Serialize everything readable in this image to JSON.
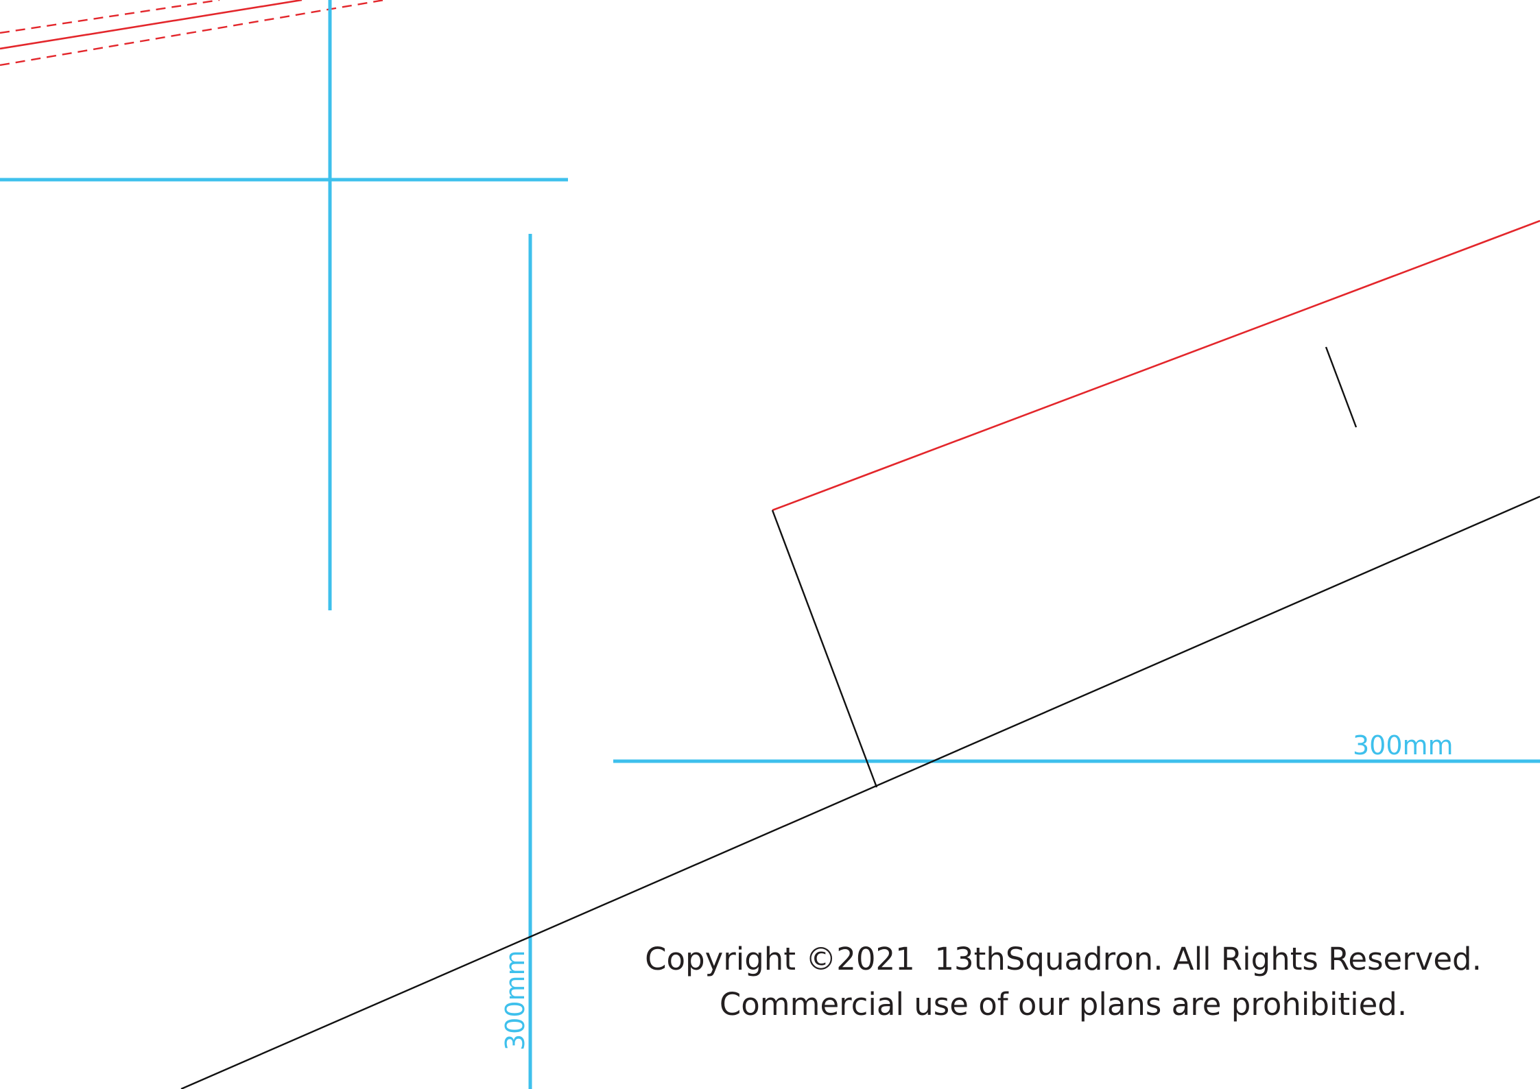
{
  "diagram": {
    "colors": {
      "guide": "#3ec0ec",
      "cut": "#e3262b",
      "fold": "#111111",
      "text": "#231f20"
    },
    "dimensions": {
      "horizontal_label": "300mm",
      "vertical_label": "300mm"
    },
    "notice": {
      "line1": "Copyright ©2021  13thSquadron. All Rights Reserved.",
      "line2": "Commercial use of our plans are prohibitied."
    }
  }
}
